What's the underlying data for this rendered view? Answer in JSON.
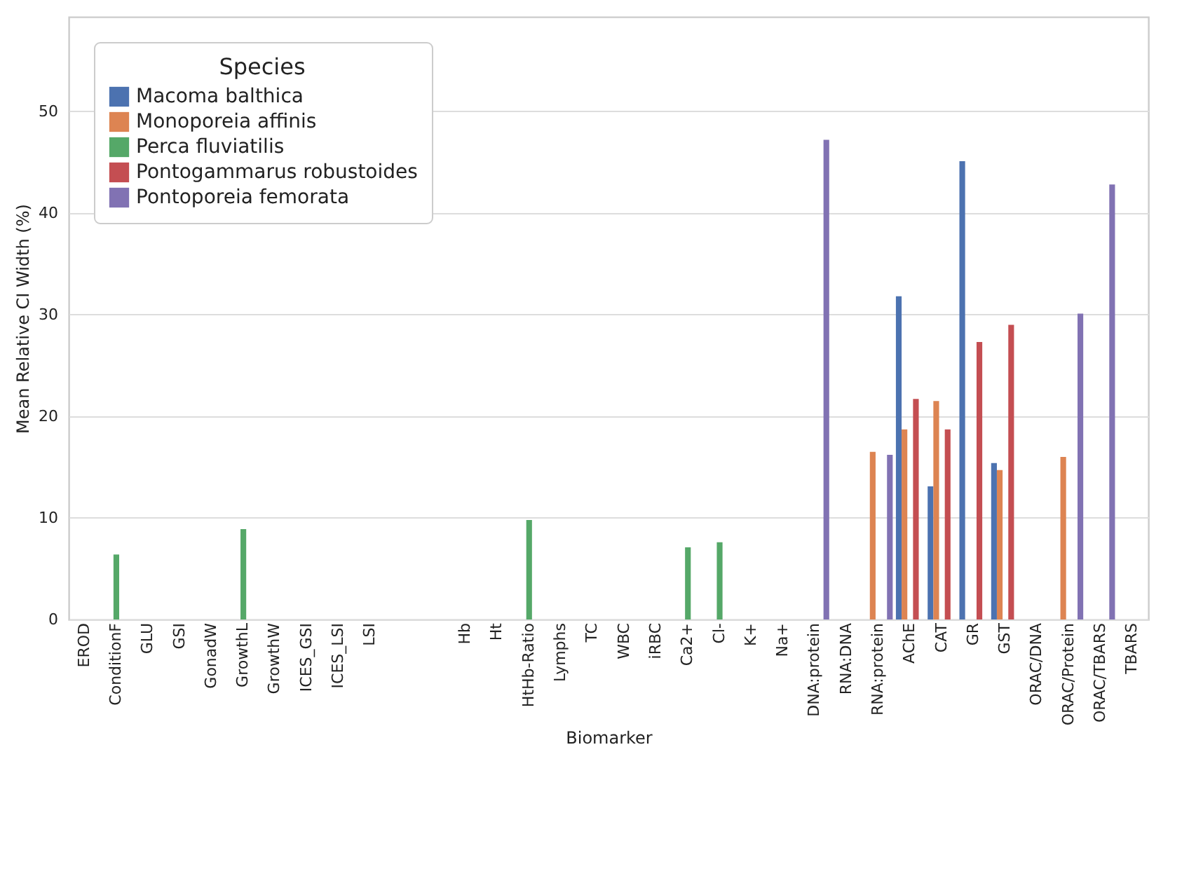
{
  "chart_data": {
    "type": "bar",
    "xlabel": "Biomarker",
    "ylabel": "Mean Relative CI Width (%)",
    "legend_title": "Species",
    "legend": "top left",
    "grid": "y",
    "categories": [
      "EROD",
      "ConditionF",
      "GLU",
      "GSI",
      "GonadW",
      "GrowthL",
      "GrowthW",
      "ICES_GSI",
      "ICES_LSI",
      "LSI",
      null,
      null,
      "Hb",
      "Ht",
      "HtHb-Ratio",
      "Lymphs",
      "TC",
      "WBC",
      "iRBC",
      "Ca2+",
      "Cl-",
      "K+",
      "Na+",
      "DNA:protein",
      "RNA:DNA",
      "RNA:protein",
      "AChE",
      "CAT",
      "GR",
      "GST",
      "ORAC/DNA",
      "ORAC/Protein",
      "ORAC/TBARS",
      "TBARS"
    ],
    "ylim": [
      0,
      59.3
    ],
    "yticks": [
      0,
      10,
      20,
      30,
      40,
      50
    ],
    "series": [
      {
        "name": "Macoma balthica",
        "color": "#4c72b0",
        "values": [
          null,
          null,
          null,
          null,
          null,
          null,
          null,
          null,
          null,
          null,
          null,
          null,
          null,
          null,
          null,
          null,
          null,
          null,
          null,
          null,
          null,
          null,
          null,
          null,
          null,
          null,
          31.8,
          13.1,
          45.1,
          15.4,
          null,
          null,
          null,
          null
        ]
      },
      {
        "name": "Monoporeia affinis",
        "color": "#dd8452",
        "values": [
          null,
          null,
          null,
          null,
          null,
          null,
          null,
          null,
          null,
          null,
          null,
          null,
          null,
          null,
          null,
          null,
          null,
          null,
          null,
          null,
          null,
          null,
          null,
          null,
          null,
          16.5,
          18.7,
          21.5,
          null,
          14.7,
          null,
          16.0,
          null,
          null
        ]
      },
      {
        "name": "Perca fluviatilis",
        "color": "#55a868",
        "values": [
          null,
          6.4,
          null,
          null,
          null,
          8.9,
          null,
          null,
          null,
          null,
          null,
          null,
          null,
          null,
          9.8,
          null,
          null,
          null,
          null,
          7.1,
          7.6,
          null,
          null,
          null,
          null,
          null,
          null,
          null,
          null,
          null,
          null,
          null,
          null,
          null
        ]
      },
      {
        "name": "Pontogammarus robustoides",
        "color": "#c44e52",
        "values": [
          null,
          null,
          null,
          null,
          null,
          null,
          null,
          null,
          null,
          null,
          null,
          null,
          null,
          null,
          null,
          null,
          null,
          null,
          null,
          null,
          null,
          null,
          null,
          null,
          null,
          null,
          21.7,
          18.7,
          27.3,
          29.0,
          null,
          null,
          null,
          null
        ]
      },
      {
        "name": "Pontoporeia femorata",
        "color": "#8172b3",
        "values": [
          null,
          null,
          null,
          null,
          null,
          null,
          null,
          null,
          null,
          null,
          null,
          null,
          null,
          null,
          null,
          null,
          null,
          null,
          null,
          null,
          null,
          null,
          null,
          47.2,
          null,
          16.2,
          null,
          null,
          null,
          null,
          null,
          30.1,
          42.8,
          null
        ]
      }
    ]
  }
}
